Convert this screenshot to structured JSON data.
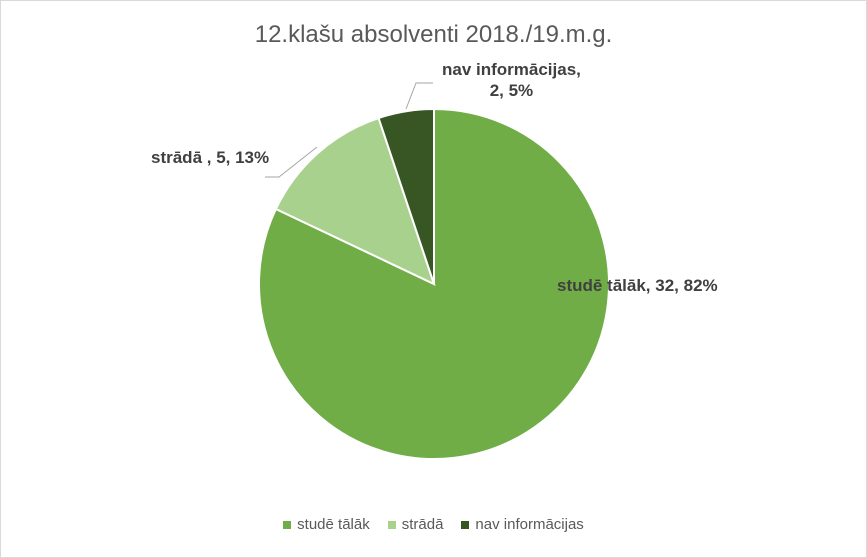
{
  "chart_data": {
    "type": "pie",
    "title": "12.klašu absolventi 2018./19.m.g.",
    "categories": [
      "studē tālāk",
      "strādā",
      "nav informācijas"
    ],
    "values": [
      32,
      5,
      2
    ],
    "percents": [
      82,
      13,
      5
    ],
    "colors": [
      "#70ad47",
      "#a9d18e",
      "#375623"
    ],
    "data_labels": [
      {
        "line1": "studē tālāk, 32, 82%",
        "line2": ""
      },
      {
        "line1": "strādā , 5, 13%",
        "line2": ""
      },
      {
        "line1": "nav informācijas,",
        "line2": "2, 5%"
      }
    ],
    "legend": {
      "position": "bottom",
      "items": [
        "studē tālāk",
        "strādā",
        "nav informācijas"
      ]
    }
  }
}
